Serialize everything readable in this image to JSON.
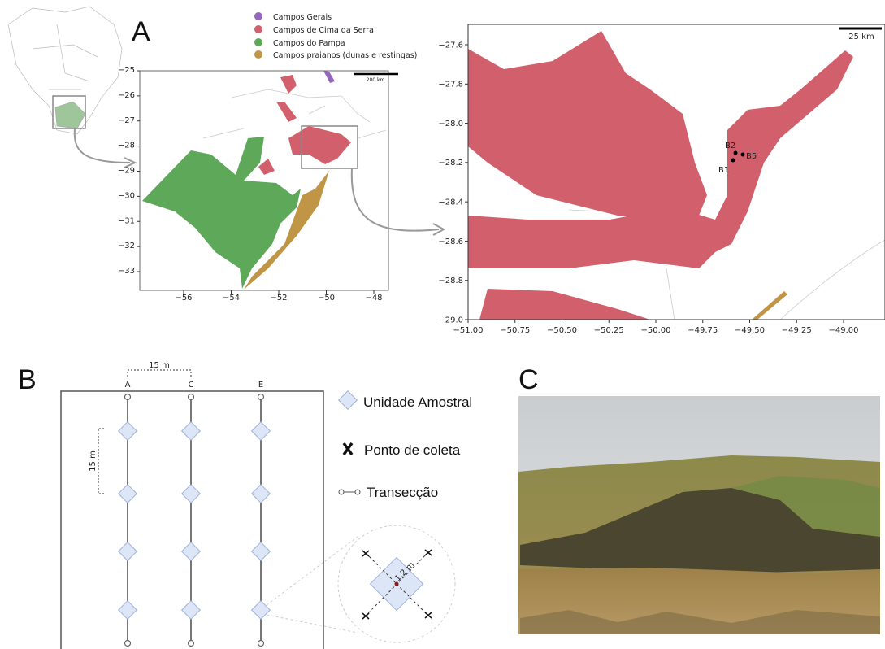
{
  "panel_a": {
    "label": "A",
    "legend": [
      "Campos Gerais",
      "Campos de Cima da Serra",
      "Campos do Pampa",
      "Campos praianos (dunas e restingas)"
    ],
    "left_map": {
      "yticks": [
        "−25",
        "−26",
        "−27",
        "−28",
        "−29",
        "−30",
        "−31",
        "−32",
        "−33"
      ],
      "xticks": [
        "−56",
        "−54",
        "−52",
        "−50",
        "−48"
      ],
      "scale": "200 km"
    },
    "right_map": {
      "yticks": [
        "−27.6",
        "−27.8",
        "−28.0",
        "−28.2",
        "−28.4",
        "−28.6",
        "−28.8",
        "−29.0"
      ],
      "xticks": [
        "−51.00",
        "−50.75",
        "−50.50",
        "−50.25",
        "−50.00",
        "−49.75",
        "−49.50",
        "−49.25",
        "−49.00"
      ],
      "scale": "25 km",
      "points": [
        "B2",
        "B5",
        "B1"
      ]
    }
  },
  "panel_b": {
    "label": "B",
    "transects": [
      "A",
      "C",
      "E"
    ],
    "spacing_h": "15 m",
    "spacing_v": "15 m",
    "legend": [
      "Unidade Amostral",
      "Ponto de coleta",
      "Transecção"
    ],
    "size": "1,2 m"
  },
  "panel_c": {
    "label": "C"
  }
}
